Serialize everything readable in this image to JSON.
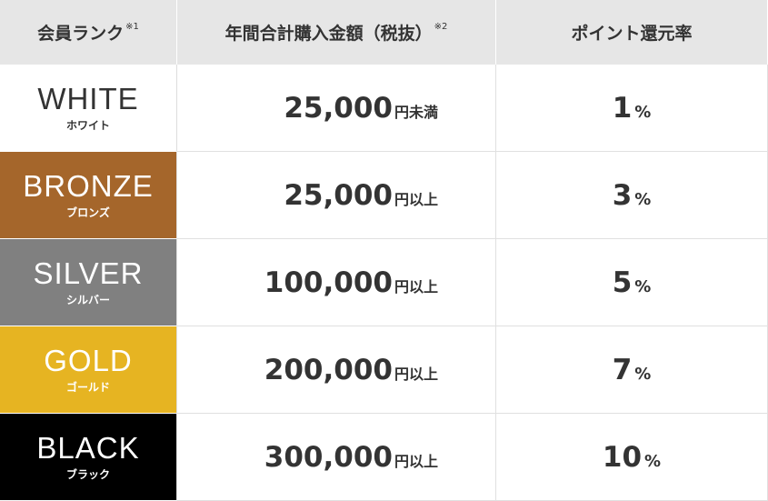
{
  "header": {
    "rank": "会員ランク",
    "rank_note": "※1",
    "amount": "年間合計購入金額（税抜）",
    "amount_note": "※2",
    "rate": "ポイント還元率"
  },
  "rows": [
    {
      "en": "WHITE",
      "ja": "ホワイト",
      "bg": "#ffffff",
      "fg": "#333333",
      "amount": "25,000",
      "suffix": "円未満",
      "rate": "1",
      "unit": "%"
    },
    {
      "en": "BRONZE",
      "ja": "ブロンズ",
      "bg": "#a5662b",
      "fg": "#ffffff",
      "amount": "25,000",
      "suffix": "円以上",
      "rate": "3",
      "unit": "%"
    },
    {
      "en": "SILVER",
      "ja": "シルバー",
      "bg": "#808080",
      "fg": "#ffffff",
      "amount": "100,000",
      "suffix": "円以上",
      "rate": "5",
      "unit": "%"
    },
    {
      "en": "GOLD",
      "ja": "ゴールド",
      "bg": "#e6b422",
      "fg": "#ffffff",
      "amount": "200,000",
      "suffix": "円以上",
      "rate": "7",
      "unit": "%"
    },
    {
      "en": "BLACK",
      "ja": "ブラック",
      "bg": "#000000",
      "fg": "#ffffff",
      "amount": "300,000",
      "suffix": "円以上",
      "rate": "10",
      "unit": "%"
    }
  ]
}
